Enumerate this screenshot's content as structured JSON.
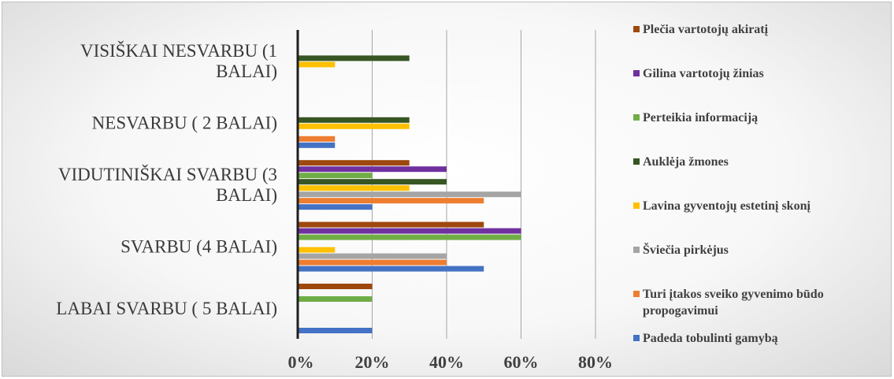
{
  "chart_data": {
    "type": "bar",
    "orientation": "horizontal",
    "title": "",
    "xlabel": "",
    "ylabel": "",
    "xlim": [
      0,
      0.8
    ],
    "x_ticks": [
      0,
      0.2,
      0.4,
      0.6,
      0.8
    ],
    "x_tick_labels": [
      "0%",
      "20%",
      "40%",
      "60%",
      "80%"
    ],
    "grid": "vertical",
    "legend_position": "right",
    "categories": [
      [
        "VISIŠKAI NESVARBU (1",
        "BALAI)"
      ],
      [
        "NESVARBU ( 2 BALAI)"
      ],
      [
        "VIDUTINIŠKAI SVARBU (3",
        "BALAI)"
      ],
      [
        "SVARBU (4 BALAI)"
      ],
      [
        "LABAI SVARBU ( 5 BALAI)"
      ]
    ],
    "series": [
      {
        "name": [
          "Padeda tobulinti gamybą"
        ],
        "color": "#4472c4",
        "values": [
          0,
          0.1,
          0.2,
          0.5,
          0.2
        ]
      },
      {
        "name": [
          "Turi įtakos sveiko gyvenimo būdo",
          "propogavimui"
        ],
        "color": "#ed7d31",
        "values": [
          0,
          0.1,
          0.5,
          0.4,
          0
        ]
      },
      {
        "name": [
          "Šviečia pirkėjus"
        ],
        "color": "#a5a5a5",
        "values": [
          0,
          0,
          0.6,
          0.4,
          0
        ]
      },
      {
        "name": [
          "Lavina gyventojų estetinį skonį"
        ],
        "color": "#ffc000",
        "values": [
          0.1,
          0.3,
          0.3,
          0.1,
          0
        ]
      },
      {
        "name": [
          "Auklėja žmones"
        ],
        "color": "#375623",
        "values": [
          0.3,
          0.3,
          0.4,
          0,
          0
        ]
      },
      {
        "name": [
          "Perteikia informaciją"
        ],
        "color": "#70ad47",
        "values": [
          0,
          0,
          0.2,
          0.6,
          0.2
        ]
      },
      {
        "name": [
          "Gilina vartotojų žinias"
        ],
        "color": "#7030a0",
        "values": [
          0,
          0,
          0.4,
          0.6,
          0
        ]
      },
      {
        "name": [
          "Plečia vartotojų akiratį"
        ],
        "color": "#9e480e",
        "values": [
          0,
          0,
          0.3,
          0.5,
          0.2
        ]
      }
    ]
  }
}
